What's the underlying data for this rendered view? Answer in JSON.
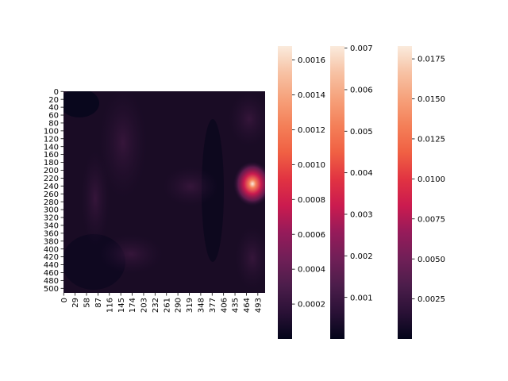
{
  "chart_data": {
    "type": "heatmap",
    "title": "",
    "xlabel": "",
    "ylabel": "",
    "x_tick_labels": [
      "0",
      "29",
      "58",
      "87",
      "116",
      "145",
      "174",
      "203",
      "232",
      "261",
      "290",
      "319",
      "348",
      "377",
      "406",
      "435",
      "464",
      "493"
    ],
    "y_tick_labels": [
      "0",
      "20",
      "40",
      "60",
      "80",
      "100",
      "120",
      "140",
      "160",
      "180",
      "200",
      "220",
      "240",
      "260",
      "280",
      "300",
      "320",
      "340",
      "360",
      "380",
      "400",
      "420",
      "440",
      "460",
      "480",
      "500"
    ],
    "x_range": [
      0,
      512
    ],
    "y_range": [
      0,
      512
    ],
    "colormap": "rocket",
    "colormap_stops": [
      "#03051a",
      "#2a1136",
      "#4c1d4b",
      "#701f57",
      "#961b5a",
      "#cb1b4f",
      "#e13342",
      "#f06043",
      "#f47f58",
      "#f6a07a",
      "#f7c2a4",
      "#faebdd"
    ],
    "hotspot": {
      "x": 480,
      "y": 235
    },
    "colorbars": [
      {
        "min": 0.0,
        "max": 0.00168,
        "tick_values": [
          0.0002,
          0.0004,
          0.0006,
          0.0008,
          0.001,
          0.0012,
          0.0014,
          0.0016
        ],
        "tick_labels": [
          "0.0002",
          "0.0004",
          "0.0006",
          "0.0008",
          "0.0010",
          "0.0012",
          "0.0014",
          "0.0016"
        ]
      },
      {
        "min": 0.0,
        "max": 0.00705,
        "tick_values": [
          0.001,
          0.002,
          0.003,
          0.004,
          0.005,
          0.006,
          0.007
        ],
        "tick_labels": [
          "0.001",
          "0.002",
          "0.003",
          "0.004",
          "0.005",
          "0.006",
          "0.007"
        ]
      },
      {
        "min": 0.0,
        "max": 0.0183,
        "tick_values": [
          0.0025,
          0.005,
          0.0075,
          0.01,
          0.0125,
          0.015,
          0.0175
        ],
        "tick_labels": [
          "0.0025",
          "0.0050",
          "0.0075",
          "0.0100",
          "0.0125",
          "0.0150",
          "0.0175"
        ]
      }
    ]
  }
}
